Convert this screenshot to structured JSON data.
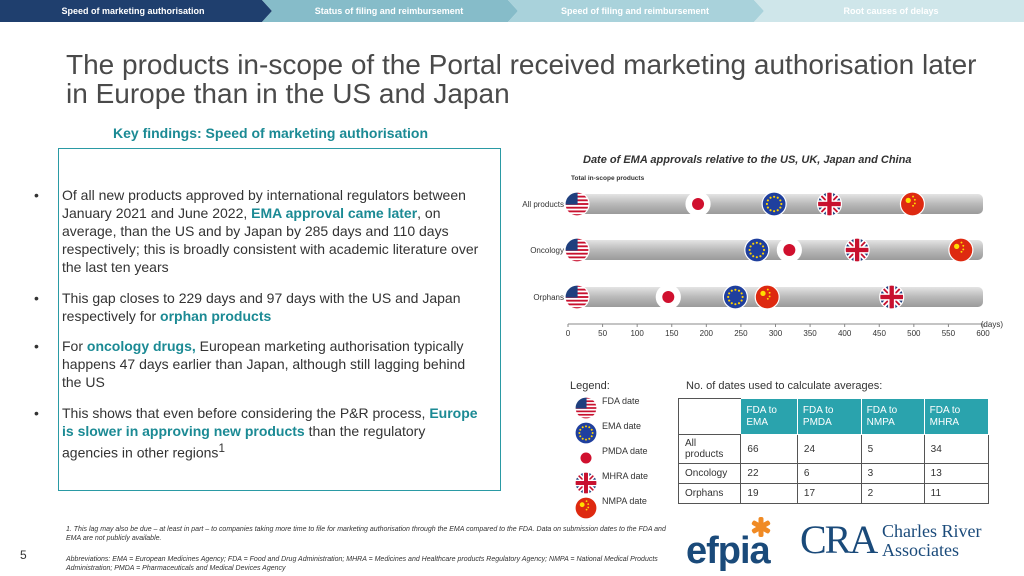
{
  "nav": {
    "tabs": [
      {
        "label": "Speed of marketing authorisation",
        "active": true
      },
      {
        "label": "Status of filing and reimbursement",
        "active": false
      },
      {
        "label": "Speed of filing and reimbursement",
        "active": false
      },
      {
        "label": "Root causes of delays",
        "active": false
      }
    ],
    "colors": {
      "active": "#1f3f6e",
      "inactive": [
        "#7fb8c6",
        "#a8d1da",
        "#cfe6ea"
      ]
    }
  },
  "title": "The products in-scope of the Portal received marketing authorisation later in Europe than in the US and Japan",
  "subtitle": "Key findings: Speed of marketing authorisation",
  "findings": {
    "b1": {
      "t1": "Of all new products approved by international regulators between January 2021 and June 2022, ",
      "h1": "EMA approval came later",
      "t2": ", on average, than the US and by Japan by 285 days and 110 days respectively; this is broadly consistent with academic literature over the last ten years"
    },
    "b2": {
      "t1": "This gap closes to 229 days and 97 days with the US and Japan respectively for ",
      "h1": "orphan products"
    },
    "b3": {
      "t0": "For ",
      "h1": "oncology drugs,",
      "t1": " European marketing authorisation typically happens 47 days earlier than Japan, although still lagging behind the US"
    },
    "b4": {
      "t1": "This shows that even before considering the P&R process, ",
      "h1": "Europe is slower in approving new products",
      "t2": " than the regulatory agencies in other regions",
      "sup": "1"
    }
  },
  "chart_data": {
    "type": "scatter",
    "title": "Date of EMA approvals relative to the US, UK, Japan and China",
    "subtitle": "Total in-scope products",
    "xlabel": "(days)",
    "xlim": [
      0,
      600
    ],
    "xticks": [
      "0",
      "50",
      "100",
      "150",
      "200",
      "250",
      "300",
      "350",
      "400",
      "450",
      "500",
      "550",
      "600"
    ],
    "categories": [
      "All products",
      "Oncology",
      "Orphans"
    ],
    "series": [
      {
        "name": "FDA date",
        "icon": "us-flag-icon",
        "values": [
          0,
          0,
          0
        ]
      },
      {
        "name": "EMA date",
        "icon": "eu-flag-icon",
        "values": [
          285,
          260,
          229
        ]
      },
      {
        "name": "PMDA date",
        "icon": "japan-flag-icon",
        "values": [
          175,
          307,
          132
        ]
      },
      {
        "name": "MHRA date",
        "icon": "uk-flag-icon",
        "values": [
          365,
          405,
          455
        ]
      },
      {
        "name": "NMPA date",
        "icon": "china-flag-icon",
        "values": [
          485,
          555,
          275
        ]
      }
    ],
    "grid": false,
    "legend_position": "bottom-left"
  },
  "legend_title": "Legend:",
  "table": {
    "title": "No. of dates used to calculate averages:",
    "headers": [
      "FDA to EMA",
      "FDA to PMDA",
      "FDA to NMPA",
      "FDA to MHRA"
    ],
    "rows": [
      {
        "label": "All products",
        "cells": [
          "66",
          "24",
          "5",
          "34"
        ]
      },
      {
        "label": "Oncology",
        "cells": [
          "22",
          "6",
          "3",
          "13"
        ]
      },
      {
        "label": "Orphans",
        "cells": [
          "19",
          "17",
          "2",
          "11"
        ]
      }
    ]
  },
  "footnote": "1. This lag may also be due – at least in part – to companies taking more time to file for marketing authorisation through the EMA compared to the FDA. Data on submission dates to the FDA and EMA are not publicly available.",
  "abbreviations": "Abbreviations: EMA = European Medicines Agency; FDA = Food and Drug Administration; MHRA = Medicines and Healthcare products Regulatory Agency; NMPA = National Medical Products Administration; PMDA = Pharmaceuticals and Medical Devices Agency",
  "page_number": "5",
  "logos": {
    "efpia": "efpia",
    "cra_letters": "CRA",
    "cra_name_1": "Charles River",
    "cra_name_2": "Associates"
  }
}
